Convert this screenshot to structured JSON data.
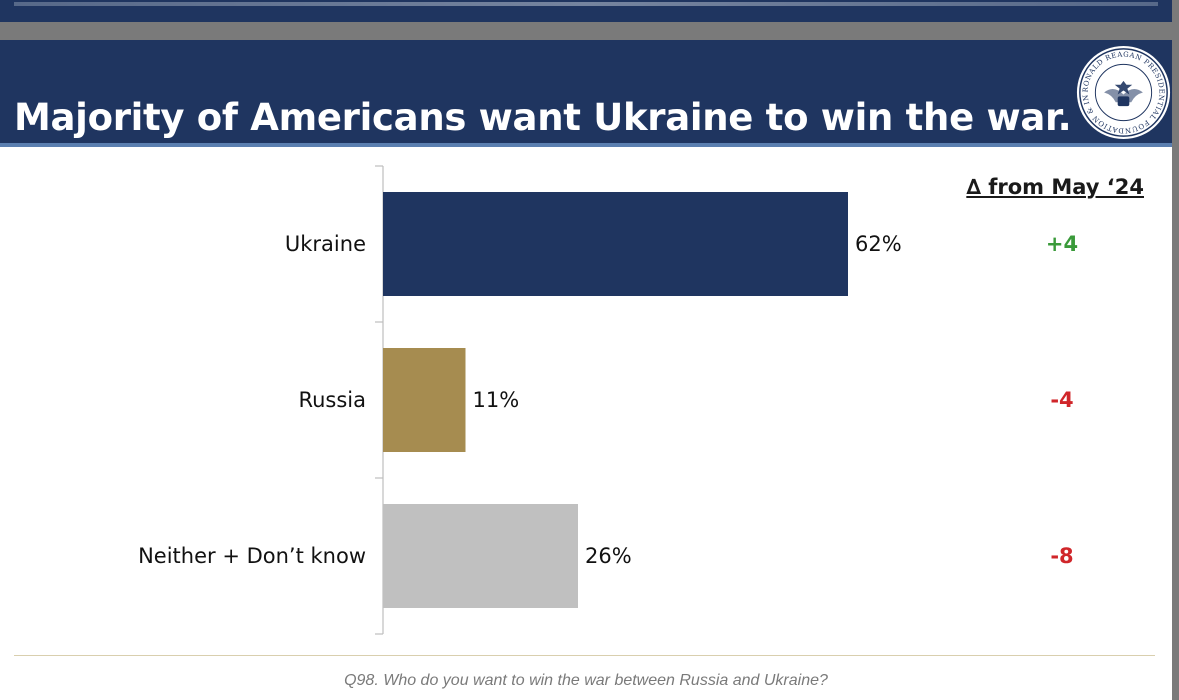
{
  "slide": {
    "title": "Majority of Americans want Ukraine to win the war.",
    "seal_text": "RONALD REAGAN PRESIDENTIAL FOUNDATION & INSTITUTE",
    "delta_header": "∆ from May ‘24",
    "footnote": "Q98. Who do you want to win the war between Russia and Ukraine?"
  },
  "colors": {
    "navy": "#1f3560",
    "gold": "#a68c50",
    "gray": "#c0c0c0",
    "positive": "#3a9a3a",
    "negative": "#d0262a"
  },
  "chart_data": {
    "type": "bar",
    "orientation": "horizontal",
    "categories": [
      "Ukraine",
      "Russia",
      "Neither + Don’t know"
    ],
    "values": [
      62,
      11,
      26
    ],
    "value_labels": [
      "62%",
      "11%",
      "26%"
    ],
    "bar_colors": [
      "#1f3560",
      "#a68c50",
      "#c0c0c0"
    ],
    "deltas": [
      "+4",
      "-4",
      "-8"
    ],
    "xlim": [
      0,
      100
    ],
    "grid": false
  }
}
